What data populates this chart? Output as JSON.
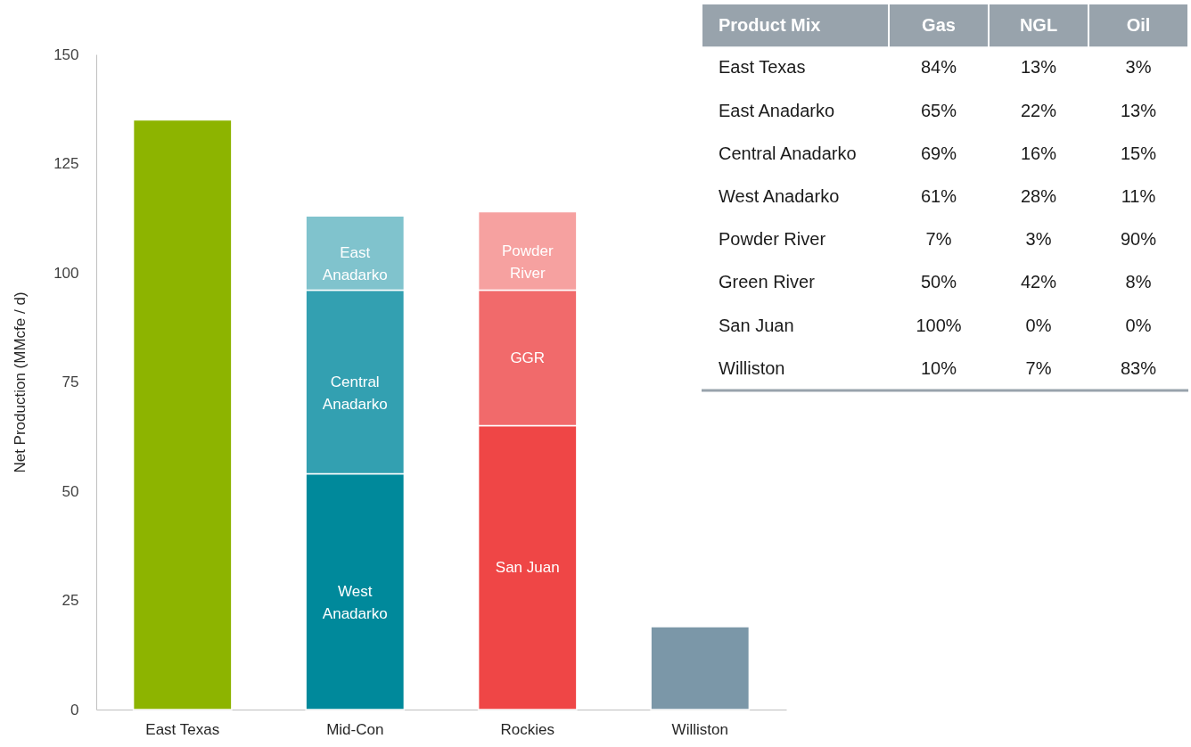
{
  "chart_data": [
    {
      "type": "bar",
      "stacked": true,
      "ylabel": "Net Production (MMcfe / d)",
      "categories": [
        "East Texas",
        "Mid-Con",
        "Rockies",
        "Williston"
      ],
      "series": [
        {
          "color": "#8db400",
          "values": [
            135,
            null,
            null,
            null
          ]
        },
        {
          "name": "West Anadarko",
          "color": "#00899b",
          "values": [
            null,
            54,
            null,
            null
          ]
        },
        {
          "name": "Central Anadarko",
          "color": "#33a0b1",
          "values": [
            null,
            42,
            null,
            null
          ]
        },
        {
          "name": "East Anadarko",
          "color": "#80c3cd",
          "values": [
            null,
            17,
            null,
            null
          ]
        },
        {
          "name": "San Juan",
          "color": "#ef4646",
          "values": [
            null,
            null,
            65,
            null
          ]
        },
        {
          "name": "GGR",
          "color": "#f16a6b",
          "values": [
            null,
            null,
            31,
            null
          ]
        },
        {
          "name": "Powder River",
          "color": "#f6a1a0",
          "values": [
            null,
            null,
            18,
            null
          ]
        },
        {
          "color": "#7b97a8",
          "values": [
            null,
            null,
            null,
            19
          ]
        }
      ],
      "ylim": [
        0,
        150
      ],
      "yticks": [
        0,
        25,
        50,
        75,
        100,
        125,
        150
      ],
      "grid": false
    },
    {
      "type": "heatmap",
      "ylabel": "Product Mix",
      "categories": [
        "Gas",
        "NGL",
        "Oil"
      ],
      "y_categories": [
        "East Texas",
        "East Anadarko",
        "Central Anadarko",
        "West Anadarko",
        "Powder River",
        "Green River",
        "San Juan",
        "Williston"
      ],
      "cells": [
        [
          84,
          13,
          3
        ],
        [
          65,
          22,
          13
        ],
        [
          69,
          16,
          15
        ],
        [
          61,
          28,
          11
        ],
        [
          7,
          3,
          90
        ],
        [
          50,
          42,
          8
        ],
        [
          100,
          0,
          0
        ],
        [
          10,
          7,
          83
        ]
      ],
      "cell_labels": [
        [
          "84%",
          "13%",
          "3%"
        ],
        [
          "65%",
          "22%",
          "13%"
        ],
        [
          "69%",
          "16%",
          "15%"
        ],
        [
          "61%",
          "28%",
          "11%"
        ],
        [
          "7%",
          "3%",
          "90%"
        ],
        [
          "50%",
          "42%",
          "8%"
        ],
        [
          "100%",
          "0%",
          "0%"
        ],
        [
          "10%",
          "7%",
          "83%"
        ]
      ]
    }
  ]
}
